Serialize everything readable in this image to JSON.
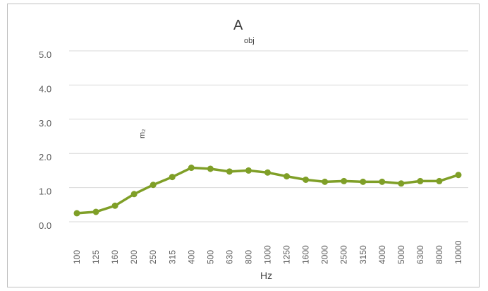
{
  "chart_data": {
    "type": "line",
    "title": "A",
    "title_subscript": "obj",
    "ylabel": "m₂",
    "xlabel": "Hz",
    "ylim": [
      0,
      5
    ],
    "y_ticks": [
      "0.0",
      "1.0",
      "2.0",
      "3.0",
      "4.0",
      "5.0"
    ],
    "grid": true,
    "categories": [
      "100",
      "125",
      "160",
      "200",
      "250",
      "315",
      "400",
      "500",
      "630",
      "800",
      "1000",
      "1250",
      "1600",
      "2000",
      "2500",
      "3150",
      "4000",
      "5000",
      "6300",
      "8000",
      "10000"
    ],
    "series": [
      {
        "values": [
          0.25,
          0.29,
          0.47,
          0.81,
          1.08,
          1.31,
          1.58,
          1.55,
          1.47,
          1.5,
          1.44,
          1.33,
          1.23,
          1.17,
          1.19,
          1.17,
          1.17,
          1.12,
          1.19,
          1.19,
          1.37
        ],
        "color": "#7f9f27"
      }
    ],
    "colors": {
      "gridline": "#d9d9d9",
      "frame": "#bfbfbf",
      "series": "#7f9f27"
    }
  }
}
